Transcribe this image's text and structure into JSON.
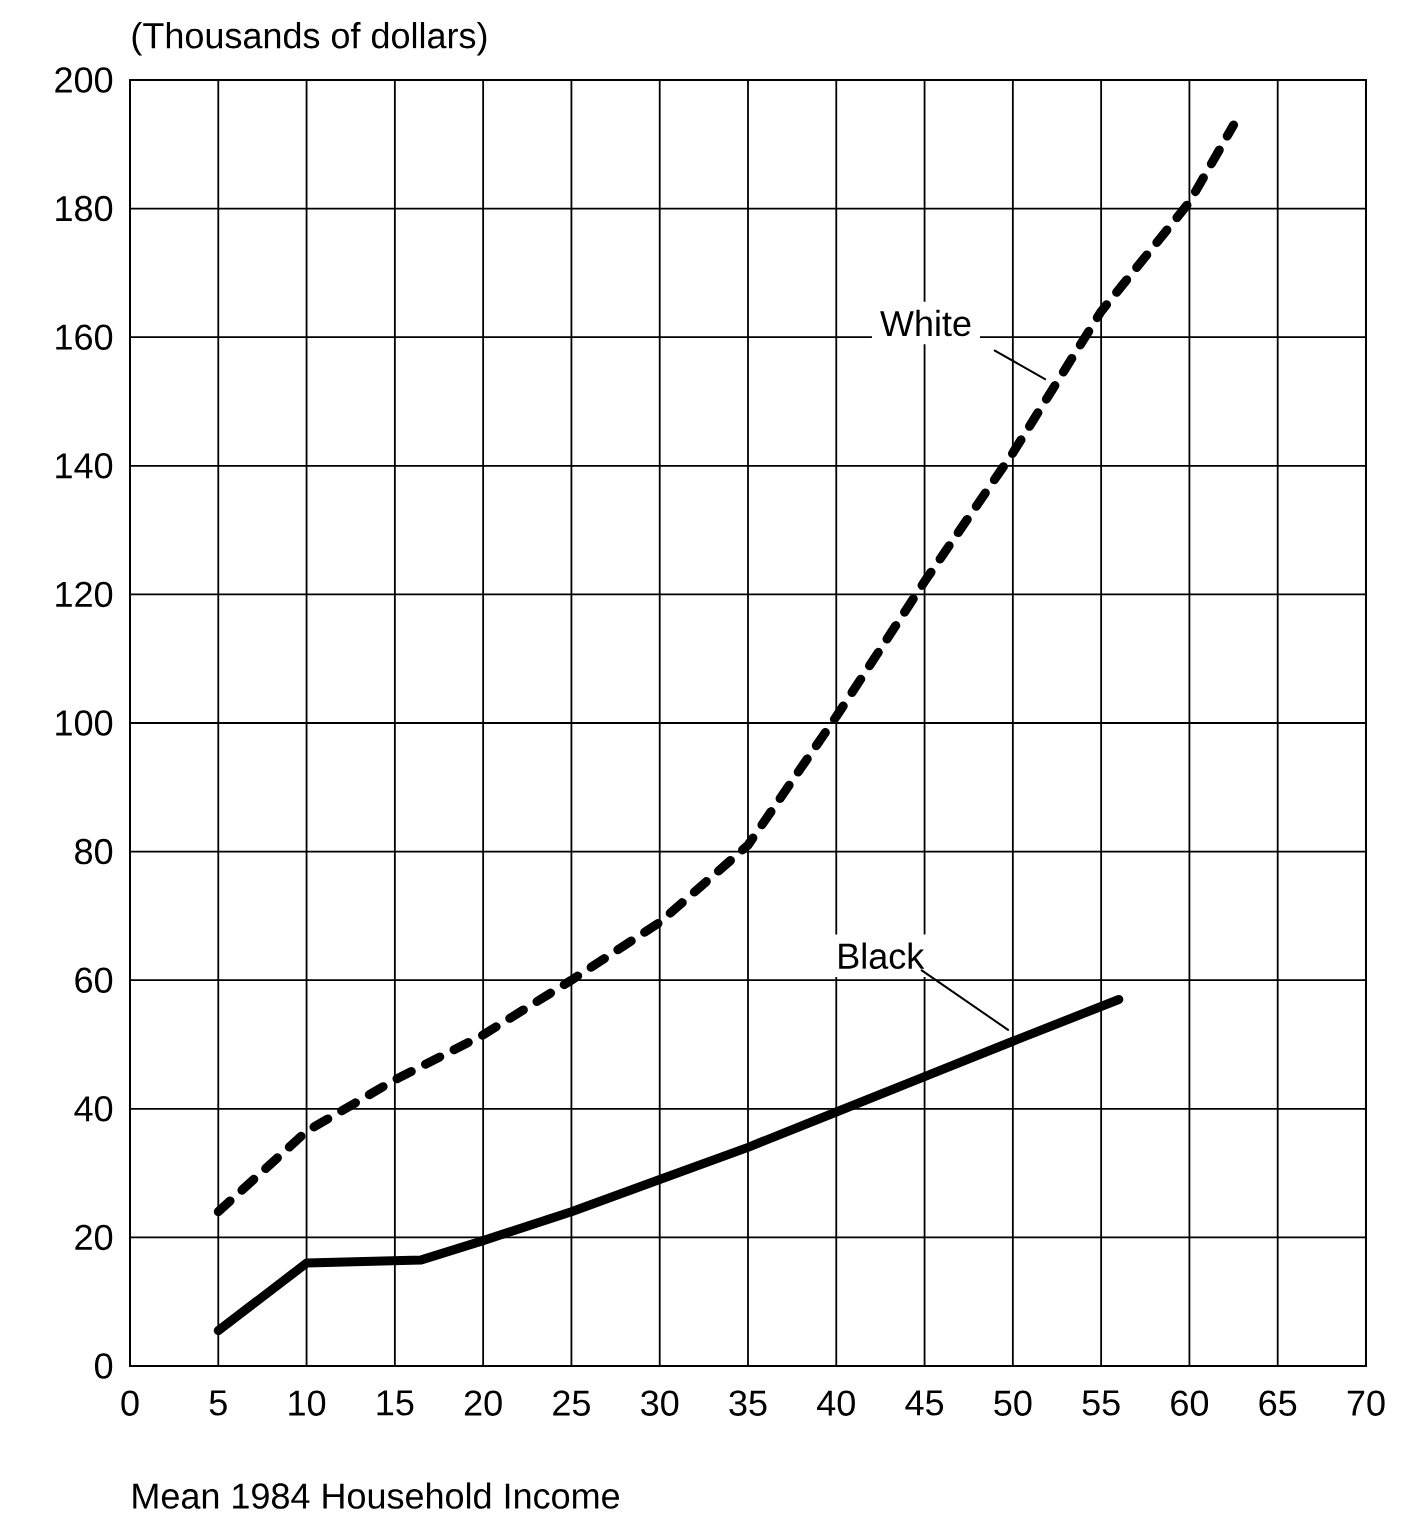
{
  "chart_data": {
    "type": "line",
    "xlabel": "Mean 1984 Household Income",
    "ylabel": "(Thousands of dollars)",
    "xlim": [
      0,
      70
    ],
    "ylim": [
      0,
      200
    ],
    "xticks": [
      0,
      5,
      10,
      15,
      20,
      25,
      30,
      35,
      40,
      45,
      50,
      55,
      60,
      65,
      70
    ],
    "yticks": [
      0,
      20,
      40,
      60,
      80,
      100,
      120,
      140,
      160,
      180,
      200
    ],
    "grid": true,
    "series": [
      {
        "name": "White",
        "color": "#000000",
        "line_style": "dashed",
        "x": [
          5,
          10,
          15,
          20,
          25,
          30,
          35,
          38.5,
          40,
          45,
          50,
          55,
          60,
          62.5
        ],
        "values": [
          24,
          36.5,
          44.5,
          51.5,
          60,
          69,
          81,
          95,
          101,
          122,
          142,
          164,
          181,
          193
        ]
      },
      {
        "name": "Black",
        "color": "#000000",
        "line_style": "solid",
        "x": [
          5,
          10,
          16.5,
          20,
          25,
          30,
          35,
          40,
          45,
          50,
          56
        ],
        "values": [
          5.5,
          16,
          16.5,
          19.5,
          24,
          29,
          34,
          39.5,
          45,
          50.5,
          57
        ]
      }
    ]
  }
}
